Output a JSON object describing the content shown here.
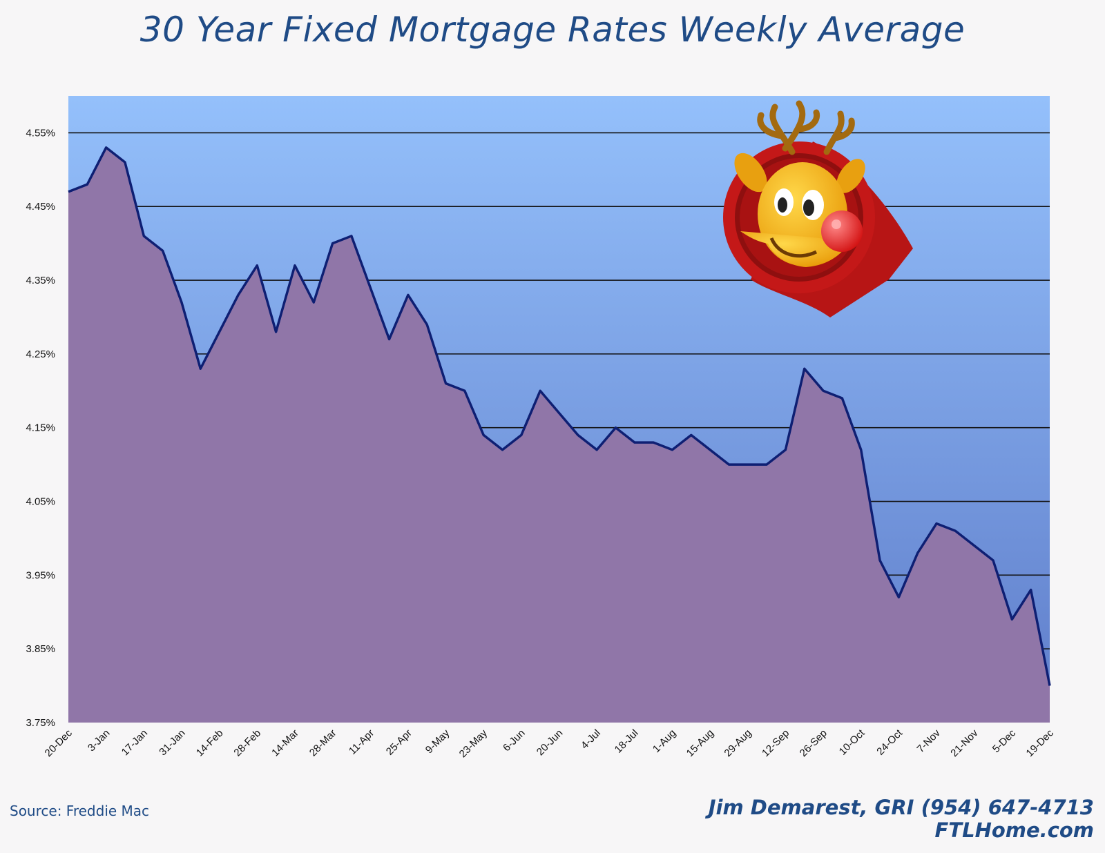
{
  "title": "30 Year Fixed Mortgage Rates Weekly Average",
  "source": "Source: Freddie Mac",
  "credit": {
    "line1": "Jim Demarest, GRI (954) 647-4713",
    "line2": "FTLHome.com"
  },
  "colors": {
    "title": "#1f4b86",
    "plot_top": "#94c0fb",
    "plot_bottom": "#5f7dca",
    "area_fill": "#9076a8",
    "line": "#0e1f73",
    "gridline": "#111111",
    "page_bg": "#f7f6f7"
  },
  "decoration": {
    "icon": "reindeer-icon"
  },
  "chart_data": {
    "type": "area",
    "ylim": [
      3.75,
      4.6
    ],
    "grid": true,
    "legend": "none",
    "y_ticks": [
      "3.75%",
      "3.85%",
      "3.95%",
      "4.05%",
      "4.15%",
      "4.25%",
      "4.35%",
      "4.45%",
      "4.55%"
    ],
    "y_tick_values": [
      3.75,
      3.85,
      3.95,
      4.05,
      4.15,
      4.25,
      4.35,
      4.45,
      4.55
    ],
    "x_tick_labels": [
      "20-Dec",
      "3-Jan",
      "17-Jan",
      "31-Jan",
      "14-Feb",
      "28-Feb",
      "14-Mar",
      "28-Mar",
      "11-Apr",
      "25-Apr",
      "9-May",
      "23-May",
      "6-Jun",
      "20-Jun",
      "4-Jul",
      "18-Jul",
      "1-Aug",
      "15-Aug",
      "29-Aug",
      "12-Sep",
      "26-Sep",
      "10-Oct",
      "24-Oct",
      "7-Nov",
      "21-Nov",
      "5-Dec",
      "19-Dec"
    ],
    "series": [
      {
        "values": [
          4.47,
          4.48,
          4.53,
          4.51,
          4.41,
          4.39,
          4.32,
          4.23,
          4.28,
          4.33,
          4.37,
          4.28,
          4.37,
          4.32,
          4.4,
          4.41,
          4.34,
          4.27,
          4.33,
          4.29,
          4.21,
          4.2,
          4.14,
          4.12,
          4.14,
          4.2,
          4.17,
          4.14,
          4.12,
          4.15,
          4.13,
          4.13,
          4.12,
          4.14,
          4.12,
          4.1,
          4.1,
          4.1,
          4.12,
          4.23,
          4.2,
          4.19,
          4.12,
          3.97,
          3.92,
          3.98,
          4.02,
          4.01,
          3.99,
          3.97,
          3.89,
          3.93,
          3.8
        ]
      }
    ]
  }
}
